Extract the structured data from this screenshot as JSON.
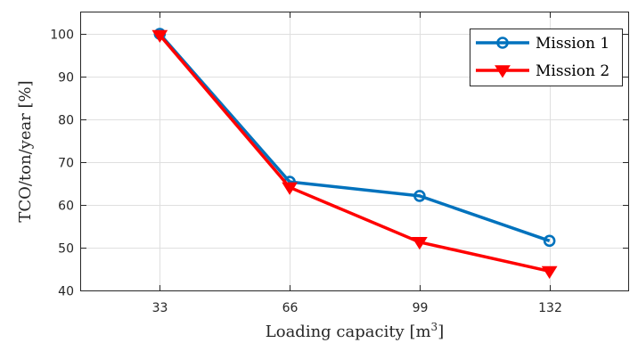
{
  "chart_data": {
    "type": "line",
    "x": [
      33,
      66,
      99,
      132
    ],
    "x_tick_labels": [
      "33",
      "66",
      "99",
      "132"
    ],
    "y_ticks": [
      40,
      50,
      60,
      70,
      80,
      90,
      100
    ],
    "y_tick_labels": [
      "40",
      "50",
      "60",
      "70",
      "80",
      "90",
      "100"
    ],
    "xlim": [
      13,
      152
    ],
    "ylim": [
      40,
      105
    ],
    "xlabel": "Loading capacity [m",
    "xlabel_superscript": "3",
    "xlabel_suffix": "]",
    "ylabel": "TCO/ton/year [%]",
    "grid": true,
    "legend_position": "top-right",
    "series": [
      {
        "name": "Mission 1",
        "values": [
          100,
          65.4,
          62.1,
          51.6
        ],
        "color": "#0072bd",
        "marker": "circle"
      },
      {
        "name": "Mission 2",
        "values": [
          99.7,
          64.1,
          51.3,
          44.5
        ],
        "color": "#ff0000",
        "marker": "triangle-down"
      }
    ]
  }
}
